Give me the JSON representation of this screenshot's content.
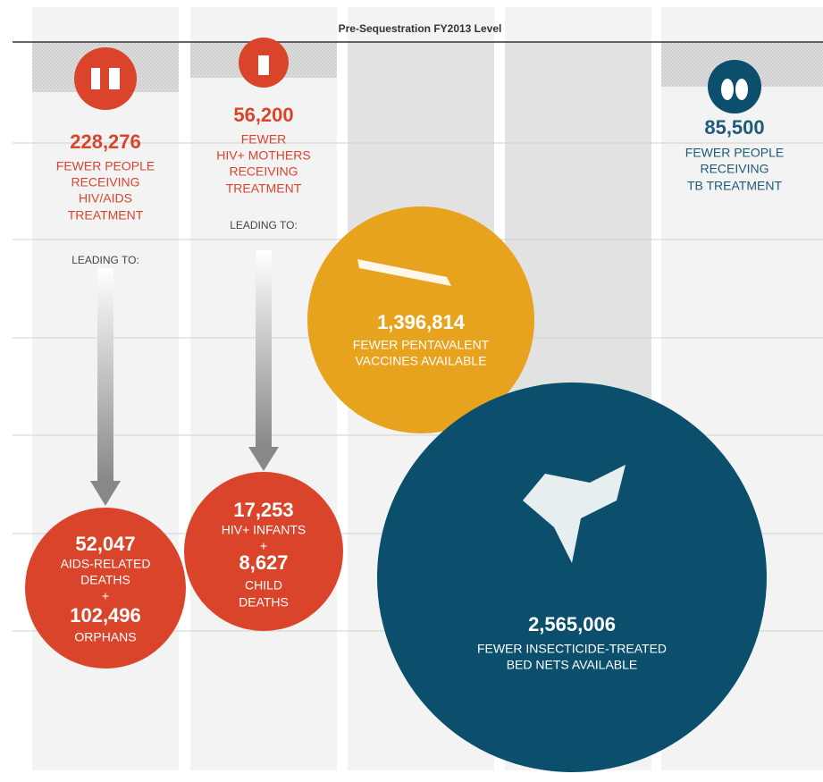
{
  "header": {
    "title": "Pre-Sequestration FY2013 Level"
  },
  "hiv": {
    "number": "228,276",
    "lines": [
      "FEWER PEOPLE",
      "RECEIVING",
      "HIV/AIDS",
      "TREATMENT"
    ],
    "leading": "LEADING TO:",
    "outcome": {
      "number1": "52,047",
      "lines1": [
        "AIDS-RELATED",
        "DEATHS"
      ],
      "plus": "+",
      "number2": "102,496",
      "lines2": [
        "ORPHANS"
      ]
    }
  },
  "mothers": {
    "number": "56,200",
    "lines": [
      "FEWER",
      "HIV+ MOTHERS",
      "RECEIVING",
      "TREATMENT"
    ],
    "leading": "LEADING TO:",
    "outcome": {
      "number1": "17,253",
      "lines1": [
        "HIV+ INFANTS"
      ],
      "plus": "+",
      "number2": "8,627",
      "lines2": [
        "CHILD",
        "DEATHS"
      ]
    }
  },
  "vaccines": {
    "number": "1,396,814",
    "lines": [
      "FEWER PENTAVALENT",
      "VACCINES AVAILABLE"
    ]
  },
  "bednets": {
    "number": "2,565,006",
    "lines": [
      "FEWER INSECTICIDE-TREATED",
      "BED NETS AVAILABLE"
    ]
  },
  "tb": {
    "number": "85,500",
    "lines": [
      "FEWER PEOPLE",
      "RECEIVING",
      "TB TREATMENT"
    ]
  }
}
